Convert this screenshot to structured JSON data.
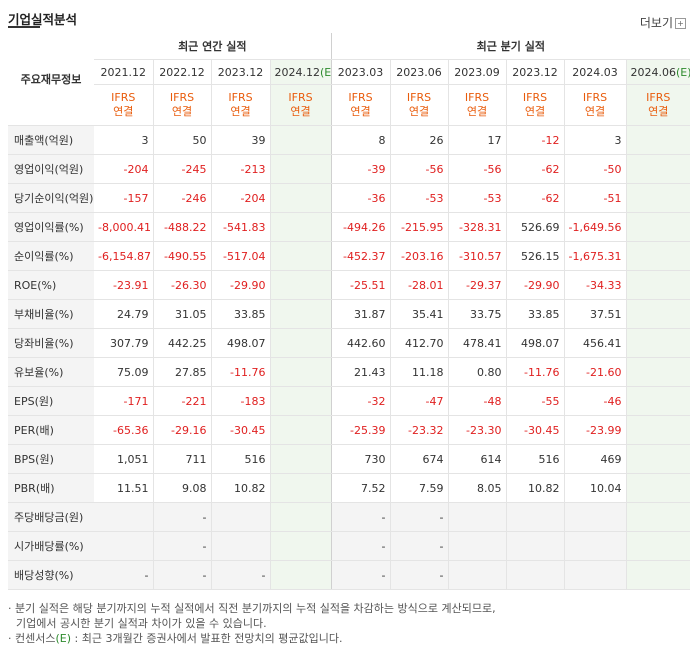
{
  "header": {
    "title": "기업실적분석",
    "more_label": "더보기",
    "more_icon": "plus-box-icon"
  },
  "table": {
    "corner_label": "주요재무정보",
    "group_annual": "최근 연간 실적",
    "group_quarter": "최근 분기 실적",
    "periods": [
      "2021.12",
      "2022.12",
      "2023.12",
      "2024.12",
      "2023.03",
      "2023.06",
      "2023.09",
      "2023.12",
      "2024.03",
      "2024.06"
    ],
    "estimate_marker": "(E)",
    "basis_top": "IFRS",
    "basis_bottom": "연결",
    "rows": [
      {
        "label": "매출액(억원)",
        "values": [
          "3",
          "50",
          "39",
          "",
          "8",
          "26",
          "17",
          "-12",
          "3",
          ""
        ]
      },
      {
        "label": "영업이익(억원)",
        "values": [
          "-204",
          "-245",
          "-213",
          "",
          "-39",
          "-56",
          "-56",
          "-62",
          "-50",
          ""
        ]
      },
      {
        "label": "당기순이익(억원)",
        "values": [
          "-157",
          "-246",
          "-204",
          "",
          "-36",
          "-53",
          "-53",
          "-62",
          "-51",
          ""
        ]
      },
      {
        "label": "영업이익률(%)",
        "values": [
          "-8,000.41",
          "-488.22",
          "-541.83",
          "",
          "-494.26",
          "-215.95",
          "-328.31",
          "526.69",
          "-1,649.56",
          ""
        ]
      },
      {
        "label": "순이익률(%)",
        "values": [
          "-6,154.87",
          "-490.55",
          "-517.04",
          "",
          "-452.37",
          "-203.16",
          "-310.57",
          "526.15",
          "-1,675.31",
          ""
        ]
      },
      {
        "label": "ROE(%)",
        "values": [
          "-23.91",
          "-26.30",
          "-29.90",
          "",
          "-25.51",
          "-28.01",
          "-29.37",
          "-29.90",
          "-34.33",
          ""
        ]
      },
      {
        "label": "부채비율(%)",
        "values": [
          "24.79",
          "31.05",
          "33.85",
          "",
          "31.87",
          "35.41",
          "33.75",
          "33.85",
          "37.51",
          ""
        ]
      },
      {
        "label": "당좌비율(%)",
        "values": [
          "307.79",
          "442.25",
          "498.07",
          "",
          "442.60",
          "412.70",
          "478.41",
          "498.07",
          "456.41",
          ""
        ]
      },
      {
        "label": "유보율(%)",
        "values": [
          "75.09",
          "27.85",
          "-11.76",
          "",
          "21.43",
          "11.18",
          "0.80",
          "-11.76",
          "-21.60",
          ""
        ]
      },
      {
        "label": "EPS(원)",
        "values": [
          "-171",
          "-221",
          "-183",
          "",
          "-32",
          "-47",
          "-48",
          "-55",
          "-46",
          ""
        ]
      },
      {
        "label": "PER(배)",
        "values": [
          "-65.36",
          "-29.16",
          "-30.45",
          "",
          "-25.39",
          "-23.32",
          "-23.30",
          "-30.45",
          "-23.99",
          ""
        ]
      },
      {
        "label": "BPS(원)",
        "values": [
          "1,051",
          "711",
          "516",
          "",
          "730",
          "674",
          "614",
          "516",
          "469",
          ""
        ]
      },
      {
        "label": "PBR(배)",
        "values": [
          "11.51",
          "9.08",
          "10.82",
          "",
          "7.52",
          "7.59",
          "8.05",
          "10.82",
          "10.04",
          ""
        ]
      },
      {
        "label": "주당배당금(원)",
        "values": [
          "",
          "-",
          "",
          "",
          "-",
          "-",
          "",
          "",
          "",
          ""
        ]
      },
      {
        "label": "시가배당률(%)",
        "values": [
          "",
          "-",
          "",
          "",
          "-",
          "-",
          "",
          "",
          "",
          ""
        ]
      },
      {
        "label": "배당성향(%)",
        "values": [
          "-",
          "-",
          "-",
          "",
          "-",
          "-",
          "",
          "",
          "",
          ""
        ]
      }
    ]
  },
  "notes": {
    "line1": "· 분기 실적은 해당 분기까지의 누적 실적에서 직전 분기까지의 누적 실적을 차감하는 방식으로 계산되므로,",
    "line2": "기업에서 공시한 분기 실적과 차이가 있을 수 있습니다.",
    "line3_prefix": "· 컨센서스",
    "line3_marker": "(E)",
    "line3_suffix": ": 최근 3개월간 증권사에서 발표한 전망치의 평균값입니다."
  }
}
